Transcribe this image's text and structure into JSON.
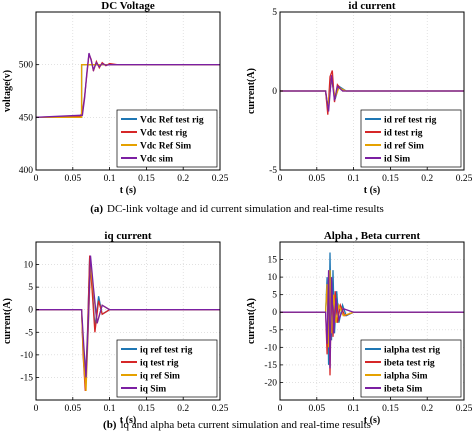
{
  "figure": {
    "caption_a_label": "(a)",
    "caption_a_text": "DC-link voltage and id current simulation and real-time results",
    "caption_b_label": "(b)",
    "caption_b_text": "iq and alpha beta current simulation and real-time results"
  },
  "chart_data": [
    {
      "type": "line",
      "title": "DC Voltage",
      "xlabel": "t (s)",
      "ylabel": "voltage(v)",
      "xlim": [
        0,
        0.25
      ],
      "ylim": [
        400,
        550
      ],
      "xticks": [
        0,
        0.05,
        0.1,
        0.15,
        0.2,
        0.25
      ],
      "yticks": [
        400,
        450,
        500
      ],
      "legend_position": "bottom-right",
      "grid": true,
      "series": [
        {
          "name": "Vdc Ref test rig",
          "color": "#1f77b4",
          "x": [
            0,
            0.062,
            0.062,
            0.25
          ],
          "y": [
            450,
            450,
            500,
            500
          ]
        },
        {
          "name": "Vdc test rig",
          "color": "#d62728",
          "x": [
            0,
            0.06,
            0.063,
            0.066,
            0.069,
            0.072,
            0.075,
            0.078,
            0.082,
            0.086,
            0.09,
            0.095,
            0.1,
            0.11,
            0.25
          ],
          "y": [
            450,
            451,
            455,
            470,
            490,
            510,
            505,
            494,
            503,
            497,
            502,
            499,
            501,
            500,
            500
          ]
        },
        {
          "name": "Vdc Ref Sim",
          "color": "#e5a100",
          "x": [
            0,
            0.062,
            0.062,
            0.25
          ],
          "y": [
            450,
            450,
            500,
            500
          ]
        },
        {
          "name": "Vdc sim",
          "color": "#7b1fa2",
          "x": [
            0,
            0.063,
            0.066,
            0.069,
            0.072,
            0.075,
            0.078,
            0.082,
            0.086,
            0.09,
            0.095,
            0.1,
            0.25
          ],
          "y": [
            450,
            452,
            468,
            492,
            511,
            504,
            495,
            502,
            498,
            501,
            499.5,
            500,
            500
          ]
        }
      ]
    },
    {
      "type": "line",
      "title": "id current",
      "xlabel": "t (s)",
      "ylabel": "current(A)",
      "xlim": [
        0,
        0.25
      ],
      "ylim": [
        -5,
        5
      ],
      "xticks": [
        0,
        0.05,
        0.1,
        0.15,
        0.2,
        0.25
      ],
      "yticks": [
        -5,
        0,
        5
      ],
      "legend_position": "bottom-right",
      "grid": true,
      "series": [
        {
          "name": "id ref test rig",
          "color": "#1f77b4",
          "x": [
            0,
            0.062,
            0.065,
            0.07,
            0.075,
            0.08,
            0.09,
            0.25
          ],
          "y": [
            0,
            0,
            -1.2,
            0.8,
            -0.5,
            0.3,
            0,
            0
          ]
        },
        {
          "name": "id test rig",
          "color": "#d62728",
          "x": [
            0,
            0.062,
            0.065,
            0.068,
            0.071,
            0.074,
            0.078,
            0.085,
            0.25
          ],
          "y": [
            0,
            0,
            -1.5,
            0.9,
            1.3,
            -0.7,
            0.4,
            0,
            0
          ]
        },
        {
          "name": "id ref Sim",
          "color": "#e5a100",
          "x": [
            0,
            0.062,
            0.065,
            0.07,
            0.075,
            0.08,
            0.09,
            0.25
          ],
          "y": [
            0,
            0,
            -1.0,
            0.7,
            -0.4,
            0.2,
            0,
            0
          ]
        },
        {
          "name": "id Sim",
          "color": "#7b1fa2",
          "x": [
            0,
            0.062,
            0.066,
            0.07,
            0.074,
            0.078,
            0.085,
            0.25
          ],
          "y": [
            0,
            0,
            -1.3,
            1.0,
            -0.6,
            0.3,
            0,
            0
          ]
        }
      ]
    },
    {
      "type": "line",
      "title": "iq current",
      "xlabel": "t (s)",
      "ylabel": "current(A)",
      "xlim": [
        0,
        0.25
      ],
      "ylim": [
        -20,
        15
      ],
      "xticks": [
        0,
        0.05,
        0.1,
        0.15,
        0.2,
        0.25
      ],
      "yticks": [
        -15,
        -10,
        -5,
        0,
        5,
        10
      ],
      "legend_position": "bottom-right",
      "grid": true,
      "series": [
        {
          "name": "iq ref test rig",
          "color": "#1f77b4",
          "x": [
            0,
            0.062,
            0.064,
            0.067,
            0.07,
            0.073,
            0.076,
            0.08,
            0.085,
            0.09,
            0.1,
            0.25
          ],
          "y": [
            0,
            0,
            -9,
            -17,
            -5,
            12,
            6,
            -4,
            3,
            -1,
            0,
            0
          ]
        },
        {
          "name": "iq test rig",
          "color": "#d62728",
          "x": [
            0,
            0.062,
            0.064,
            0.067,
            0.07,
            0.073,
            0.076,
            0.08,
            0.085,
            0.09,
            0.1,
            0.25
          ],
          "y": [
            0,
            0,
            -10,
            -18,
            -6,
            12,
            5,
            -5,
            2,
            -1,
            0,
            0
          ]
        },
        {
          "name": "iq ref Sim",
          "color": "#e5a100",
          "x": [
            0,
            0.062,
            0.065,
            0.068,
            0.071,
            0.074,
            0.078,
            0.083,
            0.09,
            0.1,
            0.25
          ],
          "y": [
            0,
            0,
            -12,
            -18,
            -4,
            10,
            4,
            -3,
            1,
            0,
            0
          ]
        },
        {
          "name": "iq Sim",
          "color": "#7b1fa2",
          "x": [
            0,
            0.062,
            0.065,
            0.068,
            0.071,
            0.074,
            0.078,
            0.083,
            0.09,
            0.1,
            0.25
          ],
          "y": [
            0,
            0,
            -8,
            -15,
            -3,
            12,
            5,
            -3,
            1,
            0,
            0
          ]
        }
      ]
    },
    {
      "type": "line",
      "title": "Alpha , Beta current",
      "xlabel": "t (s)",
      "ylabel": "current(A)",
      "xlim": [
        0,
        0.25
      ],
      "ylim": [
        -25,
        20
      ],
      "xticks": [
        0,
        0.05,
        0.1,
        0.15,
        0.2,
        0.25
      ],
      "yticks": [
        -20,
        -15,
        -10,
        -5,
        0,
        5,
        10,
        15
      ],
      "legend_position": "bottom-right",
      "grid": true,
      "series": [
        {
          "name": "ialpha test rig",
          "color": "#1f77b4",
          "x": [
            0,
            0.062,
            0.064,
            0.066,
            0.068,
            0.07,
            0.072,
            0.074,
            0.077,
            0.08,
            0.085,
            0.09,
            0.1,
            0.25
          ],
          "y": [
            0,
            0,
            10,
            -15,
            17,
            -8,
            12,
            -6,
            6,
            -3,
            2,
            -1,
            0,
            0
          ]
        },
        {
          "name": "ibeta test rig",
          "color": "#d62728",
          "x": [
            0,
            0.062,
            0.064,
            0.066,
            0.068,
            0.07,
            0.072,
            0.075,
            0.078,
            0.082,
            0.088,
            0.1,
            0.25
          ],
          "y": [
            0,
            0,
            -12,
            10,
            -18,
            9,
            -7,
            6,
            -3,
            2,
            -1,
            0,
            0
          ]
        },
        {
          "name": "ialpha Sim",
          "color": "#e5a100",
          "x": [
            0,
            0.062,
            0.064,
            0.066,
            0.068,
            0.07,
            0.073,
            0.076,
            0.08,
            0.086,
            0.1,
            0.25
          ],
          "y": [
            0,
            0,
            8,
            -10,
            12,
            -6,
            5,
            -3,
            2,
            -1,
            0,
            0
          ]
        },
        {
          "name": "ibeta Sim",
          "color": "#7b1fa2",
          "x": [
            0,
            0.062,
            0.064,
            0.066,
            0.068,
            0.07,
            0.073,
            0.076,
            0.08,
            0.086,
            0.1,
            0.25
          ],
          "y": [
            0,
            0,
            -9,
            12,
            -16,
            10,
            -6,
            4,
            -2,
            1,
            0,
            0
          ]
        }
      ]
    }
  ]
}
